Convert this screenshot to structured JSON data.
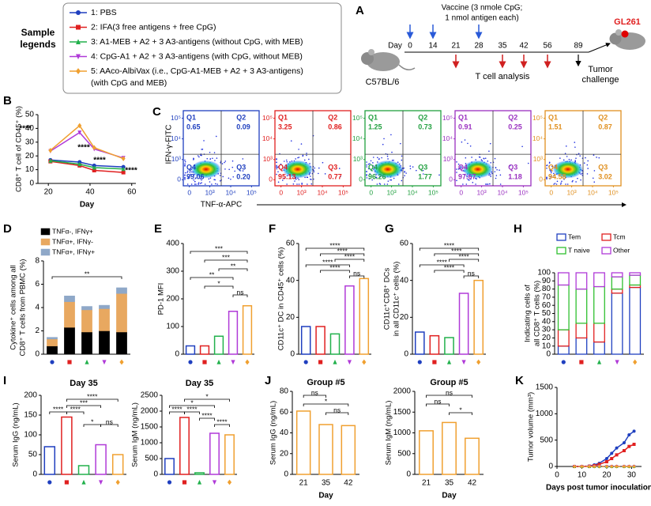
{
  "legend": {
    "title": [
      "Sample",
      "legends"
    ],
    "entries": [
      {
        "label": "1: PBS",
        "color": "#1f3fbf"
      },
      {
        "label": "2: IFA(3 free antigens + free CpG)",
        "color": "#e02020"
      },
      {
        "label": "3: A1-MEB + A2 + 3 A3-antigens (without CpG, with MEB)",
        "color": "#22b14c"
      },
      {
        "label": "4: CpG-A1 + A2 + 3 A3-antigens (with CpG, without MEB)",
        "color": "#b03ad8"
      },
      {
        "label": "5: AAco-AlbiVax (i.e., CpG-A1-MEB + A2 + 3 A3-antigens)",
        "label2": "(with CpG and MEB)",
        "color": "#f0a030"
      }
    ]
  },
  "schematic": {
    "panel": "A",
    "vaccine": [
      "Vaccine (3 nmole CpG;",
      "1 nmol antigen each)"
    ],
    "day": "Day",
    "days": [
      "0",
      "14",
      "21",
      "28",
      "35",
      "42",
      "56",
      "89"
    ],
    "tumor_cell": "GL261",
    "mouse": "C57BL/6",
    "analysis": "T cell analysis",
    "challenge": [
      "Tumor",
      "challenge"
    ]
  },
  "chart_data": [
    {
      "panel": "B",
      "type": "line",
      "xlabel": "Day",
      "ylabel": "CD8⁺ T cell of CD45⁺ (%)",
      "x": [
        21,
        35,
        42,
        56
      ],
      "xlim": [
        15,
        62
      ],
      "xticks": [
        20,
        40,
        60
      ],
      "ylim": [
        0,
        50
      ],
      "yticks": [
        0,
        10,
        20,
        30,
        40,
        50
      ],
      "series": [
        {
          "color": "#1f3fbf",
          "values": [
            17,
            15.5,
            13,
            12
          ]
        },
        {
          "color": "#e02020",
          "values": [
            16,
            13,
            9.5,
            8
          ]
        },
        {
          "color": "#22b14c",
          "values": [
            16.5,
            14,
            11.5,
            10.5
          ]
        },
        {
          "color": "#b03ad8",
          "values": [
            23.5,
            37,
            25,
            18.5
          ]
        },
        {
          "color": "#f0a030",
          "values": [
            24,
            42,
            26,
            18
          ]
        }
      ],
      "annotations": [
        "****",
        "****",
        "****",
        "****"
      ]
    },
    {
      "panel": "C",
      "type": "flow",
      "xlabel": "TNF-α-APC",
      "ylabel": "IFN-γ-FITC",
      "scale": "log",
      "xticks": [
        0,
        {
          "value": 1000,
          "label": "10³"
        },
        {
          "value": 10000,
          "label": "10⁴"
        },
        {
          "value": 100000,
          "label": "10⁵"
        }
      ],
      "yticks": [
        0,
        {
          "value": 1000,
          "label": "10³"
        },
        {
          "value": 10000,
          "label": "10⁴"
        },
        {
          "value": 100000,
          "label": "10⁵"
        }
      ],
      "plots": [
        {
          "color": "#1f3fbf",
          "quadrants": [
            {
              "name": "Q1",
              "value": 0.65
            },
            {
              "name": "Q2",
              "value": 0.09
            },
            {
              "name": "Q4",
              "value": 99.06
            },
            {
              "name": "Q3",
              "value": 0.2,
              "label": "0.20"
            }
          ]
        },
        {
          "color": "#e02020",
          "quadrants": [
            {
              "name": "Q1",
              "value": 3.25
            },
            {
              "name": "Q2",
              "value": 0.86
            },
            {
              "name": "Q4",
              "value": 95.13
            },
            {
              "name": "Q3",
              "value": 0.77
            }
          ]
        },
        {
          "color": "#22a040",
          "quadrants": [
            {
              "name": "Q1",
              "value": 1.25
            },
            {
              "name": "Q2",
              "value": 0.73
            },
            {
              "name": "Q4",
              "value": 96.26
            },
            {
              "name": "Q3",
              "value": 1.77
            }
          ]
        },
        {
          "color": "#9a30c0",
          "quadrants": [
            {
              "name": "Q1",
              "value": 0.91
            },
            {
              "name": "Q2",
              "value": 0.25
            },
            {
              "name": "Q4",
              "value": 97.67
            },
            {
              "name": "Q3",
              "value": 1.18
            }
          ]
        },
        {
          "color": "#e09020",
          "quadrants": [
            {
              "name": "Q1",
              "value": 1.51
            },
            {
              "name": "Q2",
              "value": 0.87
            },
            {
              "name": "Q4",
              "value": 94.58
            },
            {
              "name": "Q3",
              "value": 3.02
            }
          ]
        }
      ]
    },
    {
      "panel": "D",
      "type": "stacked_bar",
      "ylabel": [
        "Cytokine⁺ cells among all",
        "CD8⁺ T cells from PBMC (%)"
      ],
      "categories": [
        null,
        null,
        null,
        null,
        null
      ],
      "ylim": [
        0,
        8
      ],
      "yticks": [
        0,
        2,
        4,
        6,
        8
      ],
      "series": [
        {
          "name": "TNFα-, IFNγ+",
          "color": "#000000",
          "values": [
            0.7,
            2.3,
            1.9,
            2.0,
            1.9
          ]
        },
        {
          "name": "TNFα+, IFNγ-",
          "color": "#e8a860",
          "values": [
            0.6,
            2.2,
            1.9,
            1.9,
            3.3
          ]
        },
        {
          "name": "TNFα+, IFNγ+",
          "color": "#8fa8c8",
          "values": [
            0.15,
            0.5,
            0.3,
            0.3,
            0.5
          ]
        }
      ],
      "annotations": [
        "**"
      ]
    },
    {
      "panel": "E",
      "type": "bar",
      "ylabel": "PD-1 MFI",
      "categories": [
        null,
        null,
        null,
        null,
        null
      ],
      "values": [
        30,
        30,
        65,
        155,
        175
      ],
      "ylim": [
        0,
        400
      ],
      "yticks": [
        0,
        100,
        200,
        300,
        400
      ],
      "annotations": [
        "***",
        "***",
        "**",
        "**",
        "*",
        "ns"
      ]
    },
    {
      "panel": "F",
      "type": "bar",
      "ylabel": "CD11c⁺ DC in CD45⁺ cells (%)",
      "categories": [
        null,
        null,
        null,
        null,
        null
      ],
      "values": [
        15,
        15,
        11,
        37,
        41
      ],
      "ylim": [
        0,
        60
      ],
      "yticks": [
        0,
        20,
        40,
        60
      ],
      "annotations": [
        "****",
        "****",
        "****",
        "****",
        "****",
        "ns"
      ]
    },
    {
      "panel": "G",
      "type": "bar",
      "ylabel": [
        "CD11c⁺CD8⁺ DCs",
        "in all CD11c⁺ cells (%)"
      ],
      "categories": [
        null,
        null,
        null,
        null,
        null
      ],
      "values": [
        12,
        10,
        9,
        33,
        40
      ],
      "ylim": [
        0,
        60
      ],
      "yticks": [
        0,
        20,
        40,
        60
      ],
      "annotations": [
        "****",
        "****",
        "****",
        "****",
        "****",
        "ns"
      ]
    },
    {
      "panel": "H",
      "type": "stacked_bar",
      "outline": true,
      "ylabel": [
        "Indicating cells of",
        "all CD8⁺ T cells (%)"
      ],
      "categories": [
        null,
        null,
        null,
        null,
        null
      ],
      "ylim": [
        0,
        100
      ],
      "yticks": [
        0,
        10,
        20,
        30,
        40,
        50,
        60,
        70,
        80,
        90,
        100
      ],
      "series": [
        {
          "name": "Tem",
          "color": "#2040c0",
          "values": [
            10,
            20,
            15,
            75,
            82
          ]
        },
        {
          "name": "Tcm",
          "color": "#e02020",
          "values": [
            20,
            18,
            23,
            5,
            3
          ]
        },
        {
          "name": "T naive",
          "color": "#30c030",
          "values": [
            55,
            42,
            45,
            15,
            12
          ]
        },
        {
          "name": "Other",
          "color": "#b03ad8",
          "values": [
            15,
            20,
            17,
            5,
            3
          ]
        }
      ]
    },
    {
      "panel": "I",
      "type": "bar",
      "title": "Day 35",
      "ylabel": "Serum IgG (ng/mL)",
      "categories": [
        null,
        null,
        null,
        null,
        null
      ],
      "values": [
        70,
        145,
        22,
        75,
        50
      ],
      "ylim": [
        0,
        200
      ],
      "yticks": [
        0,
        50,
        100,
        150,
        200
      ],
      "annotations": [
        "****",
        "***",
        "****",
        "****",
        "*",
        "ns"
      ]
    },
    {
      "type": "bar",
      "title": "Day 35",
      "ylabel": "Serum IgM (ng/mL)",
      "categories": [
        null,
        null,
        null,
        null,
        null
      ],
      "values": [
        500,
        1800,
        50,
        1300,
        1250
      ],
      "ylim": [
        0,
        2500
      ],
      "yticks": [
        0,
        500,
        1000,
        1500,
        2000,
        2500
      ],
      "annotations": [
        "*",
        "*",
        "****",
        "****",
        "****",
        "****"
      ]
    },
    {
      "panel": "J",
      "type": "bar",
      "title": "Group #5",
      "xlabel": "Day",
      "ylabel": "Serum IgG (ng/mL)",
      "color": "#f0a030",
      "categories": [
        21,
        35,
        42
      ],
      "values": [
        61,
        48,
        47
      ],
      "ylim": [
        0,
        80
      ],
      "yticks": [
        0,
        20,
        40,
        60,
        80
      ],
      "annotations": [
        "ns",
        "*",
        "ns"
      ]
    },
    {
      "type": "bar",
      "title": "Group #5",
      "xlabel": "Day",
      "ylabel": "Serum IgM (ng/mL)",
      "color": "#f0a030",
      "categories": [
        21,
        35,
        42
      ],
      "values": [
        1050,
        1250,
        870
      ],
      "ylim": [
        0,
        2000
      ],
      "yticks": [
        0,
        500,
        1000,
        1500,
        2000
      ],
      "annotations": [
        "ns",
        "ns",
        "*"
      ]
    },
    {
      "panel": "K",
      "type": "line",
      "xlabel": "Days post tumor inoculation",
      "ylabel": "Tumor volume (mm³)",
      "x": [
        7,
        10,
        13,
        15,
        17,
        20,
        22,
        24,
        27,
        29,
        31
      ],
      "xlim": [
        0,
        34
      ],
      "xticks": [
        0,
        10,
        20,
        30
      ],
      "ylim": [
        0,
        1500
      ],
      "yticks": [
        0,
        500,
        1000,
        1500
      ],
      "series": [
        {
          "color": "#1f3fbf",
          "values": [
            0,
            0,
            10,
            30,
            60,
            150,
            250,
            350,
            450,
            600,
            670
          ]
        },
        {
          "color": "#e02020",
          "values": [
            0,
            0,
            5,
            15,
            40,
            90,
            150,
            220,
            300,
            380,
            420
          ]
        },
        {
          "color": "#22b14c",
          "dashed": true,
          "values": [
            0,
            0,
            0,
            0,
            0,
            0,
            0,
            0,
            0,
            0,
            0
          ]
        },
        {
          "color": "#b03ad8",
          "dashed": true,
          "values": [
            0,
            0,
            0,
            0,
            0,
            0,
            0,
            0,
            0,
            0,
            0
          ]
        },
        {
          "color": "#f0a030",
          "dashed": true,
          "values": [
            0,
            0,
            0,
            0,
            0,
            0,
            0,
            0,
            0,
            0,
            0
          ]
        }
      ]
    }
  ]
}
